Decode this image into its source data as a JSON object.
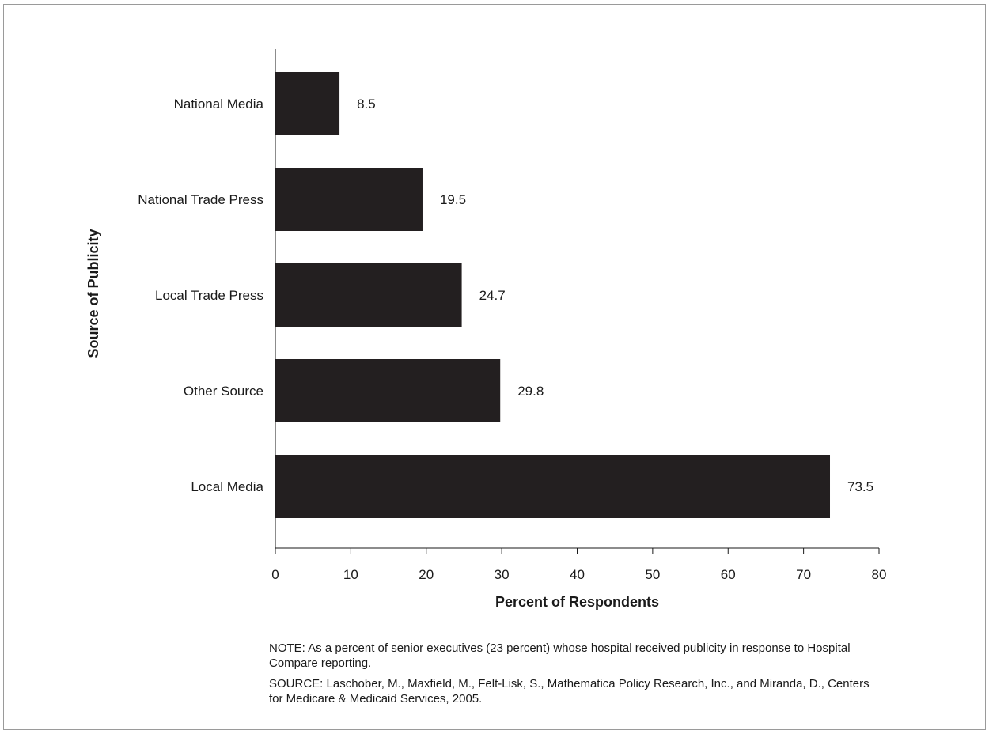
{
  "chart_data": {
    "type": "bar",
    "orientation": "horizontal",
    "categories": [
      "National Media",
      "National Trade Press",
      "Local Trade Press",
      "Other Source",
      "Local Media"
    ],
    "values": [
      8.5,
      19.5,
      24.7,
      29.8,
      73.5
    ],
    "data_labels": [
      "8.5",
      "19.5",
      "24.7",
      "29.8",
      "73.5"
    ],
    "xlabel": "Percent of Respondents",
    "ylabel": "Source of Publicity",
    "xlim": [
      0,
      80
    ],
    "xticks": [
      0,
      10,
      20,
      30,
      40,
      50,
      60,
      70,
      80
    ],
    "xtick_labels": [
      "0",
      "10",
      "20",
      "30",
      "40",
      "50",
      "60",
      "70",
      "80"
    ],
    "grid": false,
    "legend": "none",
    "bar_color": "#231f20"
  },
  "note": "NOTE: As a percent of senior executives (23 percent) whose hospital received publicity in response to Hospital Compare reporting.",
  "source": "SOURCE: Laschober, M., Maxfield, M., Felt-Lisk, S., Mathematica Policy Research, Inc., and Miranda, D., Centers for Medicare & Medicaid Services, 2005."
}
